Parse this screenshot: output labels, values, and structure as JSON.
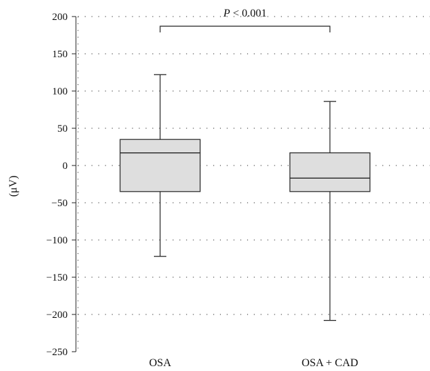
{
  "chart_data": {
    "type": "box",
    "title": "",
    "xlabel": "",
    "ylabel": "(μV)",
    "ylim": [
      -250,
      200
    ],
    "yticks": [
      200,
      150,
      100,
      50,
      0,
      -50,
      -100,
      -150,
      -200,
      -250
    ],
    "ytick_labels": [
      "200",
      "150",
      "100",
      "50",
      "0",
      "−50",
      "−100",
      "−150",
      "−200",
      "−250"
    ],
    "grid": "dotted-horizontal",
    "categories": [
      "OSA",
      "OSA + CAD"
    ],
    "boxes": [
      {
        "category": "OSA",
        "whisker_low": -122,
        "q1": -35,
        "median": 17,
        "q3": 35,
        "whisker_high": 122
      },
      {
        "category": "OSA + CAD",
        "whisker_low": -208,
        "q1": -35,
        "median": -17,
        "q3": 17,
        "whisker_high": 86
      }
    ],
    "significance": {
      "label_italic": "P",
      "label_rest": " < 0.001",
      "between": [
        "OSA",
        "OSA + CAD"
      ]
    },
    "colors": {
      "box_fill": "#dedede",
      "stroke": "#222222",
      "grid": "#555555"
    }
  }
}
